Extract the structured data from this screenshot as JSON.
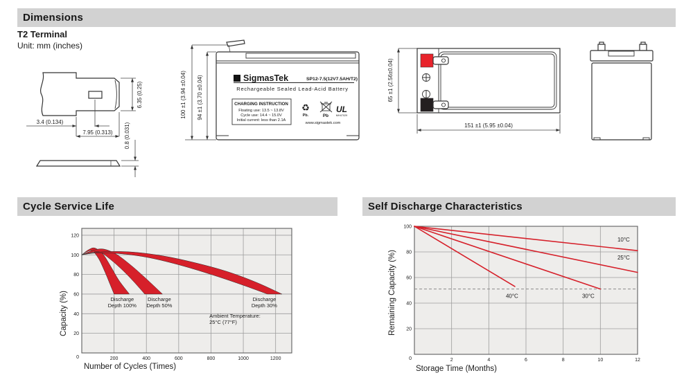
{
  "sections": {
    "dimensions": {
      "title": "Dimensions",
      "terminal_type": "T2 Terminal",
      "unit_note": "Unit: mm (inches)"
    },
    "cycle_life": {
      "title": "Cycle Service Life"
    },
    "self_discharge": {
      "title": "Self Discharge Characteristics"
    }
  },
  "terminal_detail": {
    "hole_width": "3.4 (0.134)",
    "tab_width": "7.95 (0.313)",
    "tab_height": "6.35 (0.25)",
    "thickness": "0.8 (0.031)"
  },
  "front_view": {
    "overall_height": "100 ±1 (3.94 ±0.04)",
    "case_height": "94 ±1 (3.70 ±0.04)",
    "logo_glyph": "Σ",
    "brand": "SigmasTek",
    "model": "SP12-7.5(12V7.5AH/T2)",
    "battery_type": "Rechargeable Sealed Lead-Acid Battery",
    "charging_title": "CHARGING INSTRUCTION",
    "charging_line1": "Floating use: 13.5 ~ 13.8V",
    "charging_line2": "Cycle use: 14.4 ~ 15.0V",
    "charging_line3": "Initial current: less than 2.1A",
    "recycle_glyph": "♻",
    "recycle_pb": "Pb.",
    "bin_pb": "Pb",
    "ul_text": "UL",
    "ul_number": "MH47029",
    "website": "www.sigmastek.com"
  },
  "top_view": {
    "height_dim": "65 ±1 (2.56±0.04)",
    "width_dim": "151 ±1 (5.95 ±0.04)",
    "positive_color": "#e8232b",
    "negative_color": "#231f20"
  },
  "chart_data": [
    {
      "type": "area",
      "title": "Cycle Service Life",
      "xlabel": "Number of Cycles (Times)",
      "ylabel": "Capacity (%)",
      "xlim": [
        0,
        1300
      ],
      "ylim": [
        0,
        127
      ],
      "xticks": [
        200,
        400,
        600,
        800,
        1000,
        1200
      ],
      "yticks": [
        20,
        40,
        60,
        80,
        100,
        120
      ],
      "origin_label": "0",
      "grid": true,
      "plot_bg": "#eeedeb",
      "band_color": "#d6202a",
      "annotations": [
        {
          "lines": [
            "Discharge",
            "Depth 100%"
          ],
          "x": 250,
          "y": 53,
          "anchor": "middle"
        },
        {
          "lines": [
            "Discharge",
            "Depth 50%"
          ],
          "x": 480,
          "y": 53,
          "anchor": "middle"
        },
        {
          "lines": [
            "Discharge",
            "Depth 30%"
          ],
          "x": 1130,
          "y": 53,
          "anchor": "middle"
        },
        {
          "lines": [
            "Ambient Temperature:",
            "25°C (77°F)"
          ],
          "x": 790,
          "y": 36,
          "anchor": "start"
        }
      ],
      "series": [
        {
          "name": "Discharge Depth 100%",
          "upper": [
            [
              0,
              100
            ],
            [
              40,
              105
            ],
            [
              80,
              107
            ],
            [
              130,
              101
            ],
            [
              180,
              88
            ],
            [
              230,
              74
            ],
            [
              295,
              60
            ]
          ],
          "lower": [
            [
              0,
              100
            ],
            [
              30,
              103
            ],
            [
              65,
              104
            ],
            [
              105,
              96
            ],
            [
              145,
              82
            ],
            [
              175,
              70
            ],
            [
              200,
              60
            ]
          ]
        },
        {
          "name": "Discharge Depth 50%",
          "upper": [
            [
              0,
              100
            ],
            [
              60,
              104
            ],
            [
              130,
              106
            ],
            [
              210,
              101
            ],
            [
              300,
              90
            ],
            [
              390,
              77
            ],
            [
              500,
              60
            ]
          ],
          "lower": [
            [
              0,
              100
            ],
            [
              50,
              102
            ],
            [
              110,
              103
            ],
            [
              180,
              95
            ],
            [
              255,
              84
            ],
            [
              320,
              73
            ],
            [
              390,
              60
            ]
          ]
        },
        {
          "name": "Discharge Depth 30%",
          "upper": [
            [
              0,
              100
            ],
            [
              120,
              103
            ],
            [
              300,
              103
            ],
            [
              500,
              99
            ],
            [
              700,
              92
            ],
            [
              900,
              83
            ],
            [
              1080,
              72
            ],
            [
              1240,
              60
            ]
          ],
          "lower": [
            [
              0,
              100
            ],
            [
              100,
              102
            ],
            [
              250,
              101
            ],
            [
              420,
              97
            ],
            [
              620,
              89
            ],
            [
              820,
              79
            ],
            [
              1000,
              69
            ],
            [
              1150,
              60
            ]
          ]
        }
      ]
    },
    {
      "type": "line",
      "title": "Self Discharge Characteristics",
      "xlabel": "Storage Time (Months)",
      "ylabel": "Remaining Capacity (%)",
      "xlim": [
        0,
        12
      ],
      "ylim": [
        0,
        100
      ],
      "xticks": [
        2,
        4,
        6,
        8,
        10,
        12
      ],
      "yticks": [
        20,
        40,
        60,
        80,
        100
      ],
      "origin_label": "0",
      "grid": true,
      "plot_bg": "#eeedeb",
      "line_color": "#d6202a",
      "reference_line": {
        "y": 51,
        "style": "dashed"
      },
      "series": [
        {
          "name": "10°C",
          "points": [
            [
              0,
              100
            ],
            [
              12,
              81
            ]
          ],
          "label_pos": [
            11.25,
            88
          ]
        },
        {
          "name": "25°C",
          "points": [
            [
              0,
              100
            ],
            [
              12,
              64
            ]
          ],
          "label_pos": [
            11.25,
            74
          ]
        },
        {
          "name": "30°C",
          "points": [
            [
              0,
              100
            ],
            [
              10,
              51
            ]
          ],
          "label_pos": [
            9.35,
            44
          ]
        },
        {
          "name": "40°C",
          "points": [
            [
              0,
              100
            ],
            [
              5.4,
              53
            ]
          ],
          "label_pos": [
            5.25,
            44
          ]
        }
      ]
    }
  ]
}
